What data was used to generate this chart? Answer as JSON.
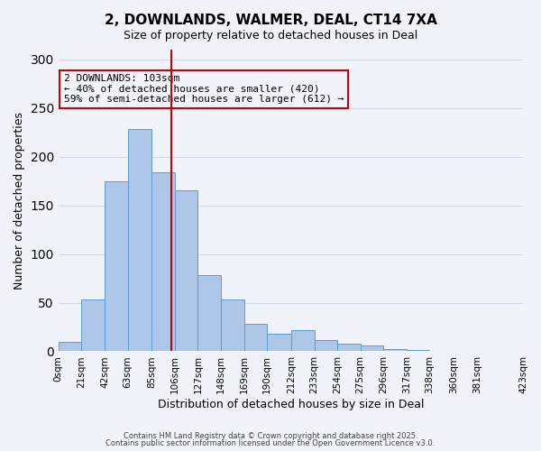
{
  "title": "2, DOWNLANDS, WALMER, DEAL, CT14 7XA",
  "subtitle": "Size of property relative to detached houses in Deal",
  "xlabel": "Distribution of detached houses by size in Deal",
  "ylabel": "Number of detached properties",
  "bar_values": [
    10,
    53,
    175,
    228,
    184,
    165,
    78,
    53,
    28,
    18,
    22,
    12,
    8,
    6,
    2,
    1,
    0,
    0,
    0
  ],
  "bin_edges": [
    0,
    21,
    42,
    63,
    85,
    106,
    127,
    148,
    169,
    190,
    212,
    233,
    254,
    275,
    296,
    317,
    338,
    360,
    381,
    423
  ],
  "tick_labels": [
    "0sqm",
    "21sqm",
    "42sqm",
    "63sqm",
    "85sqm",
    "106sqm",
    "127sqm",
    "148sqm",
    "169sqm",
    "190sqm",
    "212sqm",
    "233sqm",
    "254sqm",
    "275sqm",
    "296sqm",
    "317sqm",
    "338sqm",
    "360sqm",
    "381sqm",
    "423sqm"
  ],
  "bar_color": "#aec6e8",
  "bar_edge_color": "#5b9bd5",
  "vline_x": 103,
  "vline_color": "#cc0000",
  "annotation_text": "2 DOWNLANDS: 103sqm\n← 40% of detached houses are smaller (420)\n59% of semi-detached houses are larger (612) →",
  "annotation_box_color": "#cc0000",
  "ylim": [
    0,
    310
  ],
  "yticks": [
    0,
    50,
    100,
    150,
    200,
    250,
    300
  ],
  "grid_color": "#d0d8e8",
  "bg_color": "#f0f4fa",
  "footer1": "Contains HM Land Registry data © Crown copyright and database right 2025.",
  "footer2": "Contains public sector information licensed under the Open Government Licence v3.0."
}
